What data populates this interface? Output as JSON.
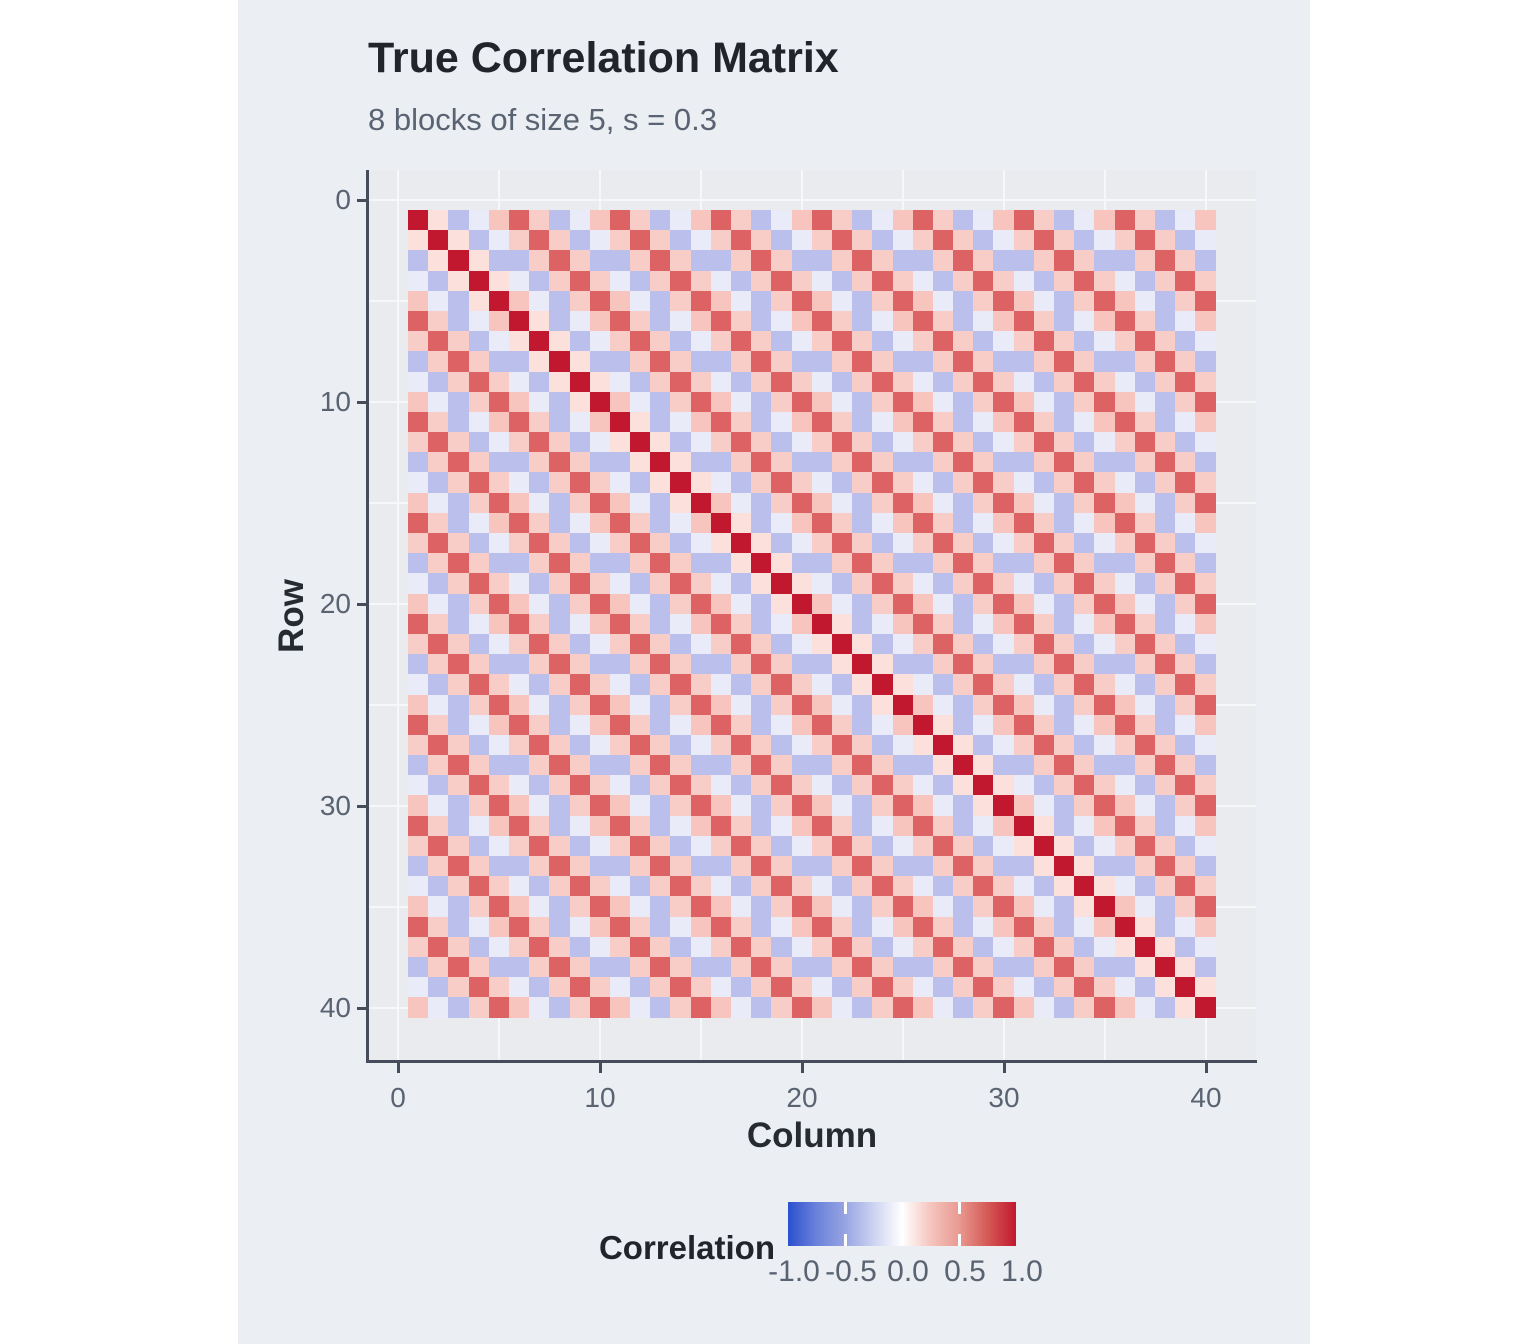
{
  "title": "True Correlation Matrix",
  "subtitle": "8 blocks of size 5, s = 0.3",
  "axes": {
    "x": {
      "label": "Column",
      "tick_labels": [
        "0",
        "10",
        "20",
        "30",
        "40"
      ],
      "tick_values": [
        0,
        10,
        20,
        30,
        40
      ]
    },
    "y": {
      "label": "Row",
      "tick_labels": [
        "0",
        "10",
        "20",
        "30",
        "40"
      ],
      "tick_values": [
        0,
        10,
        20,
        30,
        40
      ]
    }
  },
  "legend": {
    "title": "Correlation",
    "tick_labels": [
      "-1.0",
      "-0.5",
      "0.0",
      "0.5",
      "1.0"
    ],
    "tick_values": [
      -1.0,
      -0.5,
      0.0,
      0.5,
      1.0
    ],
    "notch_values": [
      -0.5,
      0.0,
      0.5
    ],
    "gradient_stops": [
      {
        "pct": 0,
        "color": "#2B50CE"
      },
      {
        "pct": 12.5,
        "color": "#6A82DA"
      },
      {
        "pct": 25,
        "color": "#97A4E2"
      },
      {
        "pct": 37.5,
        "color": "#CCD2F1"
      },
      {
        "pct": 50,
        "color": "#FFFFFF"
      },
      {
        "pct": 62.5,
        "color": "#F6C5BE"
      },
      {
        "pct": 75,
        "color": "#E89A92"
      },
      {
        "pct": 87.5,
        "color": "#D55A56"
      },
      {
        "pct": 100,
        "color": "#C1182F"
      }
    ]
  },
  "colors": {
    "page_background": "#FFFFFF",
    "card_background": "#EBEEF2",
    "panel_background": "#E9EBEF",
    "gridline": "#F5F7F9",
    "axis_line": "#454D5A",
    "tick_label": "#5A6372",
    "title_text": "#21252B",
    "subtitle_text": "#5A6372"
  },
  "chart_data": {
    "type": "heatmap",
    "title": "True Correlation Matrix",
    "subtitle": "8 blocks of size 5, s = 0.3",
    "xlabel": "Column",
    "ylabel": "Row",
    "n_rows": 40,
    "n_cols": 40,
    "n_blocks": 8,
    "block_size": 5,
    "s": 0.3,
    "x_ticks": [
      0,
      10,
      20,
      30,
      40
    ],
    "y_ticks": [
      0,
      10,
      20,
      30,
      40
    ],
    "x_range": [
      -1.5,
      42.5
    ],
    "y_range": [
      -1.5,
      42.5
    ],
    "y_axis_reversed": true,
    "grid_interval": 5,
    "legend_title": "Correlation",
    "colorbar_domain": [
      -1,
      1
    ],
    "value_rule": "corr(i,j) with 0-indexed i,j: k = |i mod 5 - j mod 5|; if i==j -> 1.0; else if floor(i/5)==floor(j/5) (same block) -> within_block_profile[k]; else (different blocks) -> between_block_profile[k]",
    "within_block_profile": [
      1.0,
      0.15,
      -0.35,
      -0.12,
      0.28
    ],
    "between_block_profile": [
      0.62,
      0.22,
      -0.35,
      -0.12,
      0.28
    ],
    "value_colors": {
      "1": "#C1182F",
      "0.62": "#DD6263",
      "0.28": "#F7C4BE",
      "0.22": "#F9CDC7",
      "0.15": "#FBE0DC",
      "-0.12": "#E9EBF9",
      "-0.35": "#BABFEC"
    }
  }
}
